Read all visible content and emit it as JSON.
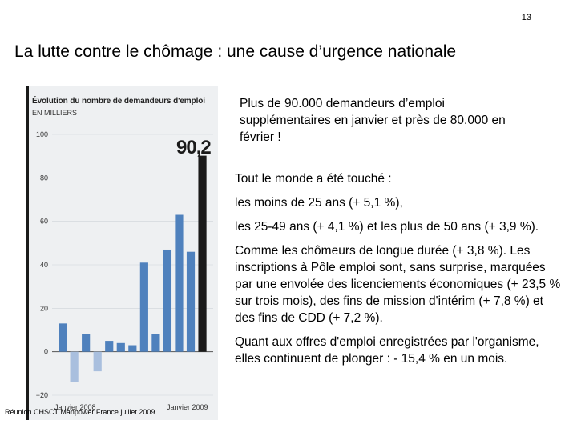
{
  "slide": {
    "number": "13",
    "title": "La lutte contre le chômage : une cause d’urgence nationale",
    "footer": "Réunion CHSCT Manpower France juillet 2009"
  },
  "text": {
    "lead": "Plus de 90.000 demandeurs d’emploi supplémentaires en janvier et près de 80.000 en février !",
    "paragraphs": [
      "Tout le monde a été touché :",
      "les moins de 25 ans (+ 5,1 %),",
      "les 25-49 ans (+ 4,1 %) et les plus de 50 ans (+ 3,9 %).",
      "Comme les chômeurs de longue durée (+ 3,8 %). Les inscriptions à Pôle emploi sont, sans surprise, marquées par une envolée des licenciements économiques (+ 23,5 % sur trois mois), des fins de mission d'intérim (+ 7,8 %) et des fins de CDD (+ 7,2 %).",
      "Quant aux offres d'emploi enregistrées par l'organisme, elles continuent de plonger : - 15,4 % en un mois."
    ]
  },
  "colors": {
    "bar_positive": "#4f81bd",
    "bar_negative": "#a9bfde",
    "bar_highlight": "#1a1a1a"
  },
  "chart_data": {
    "type": "bar",
    "title": "Évolution du nombre de demandeurs d'emploi",
    "ylabel": "EN MILLIERS",
    "ylim": [
      -20,
      100
    ],
    "yticks": [
      100,
      80,
      60,
      40,
      20,
      0,
      -20
    ],
    "ytick_labels": [
      "100",
      "80",
      "60",
      "40",
      "20",
      "0",
      "−20"
    ],
    "x_start_label": "Janvier 2008",
    "x_end_label": "Janvier 2009",
    "highlight_label": "90,2",
    "values": [
      13,
      -14,
      8,
      -9,
      5,
      4,
      3,
      41,
      8,
      47,
      63,
      46,
      90.2
    ]
  }
}
